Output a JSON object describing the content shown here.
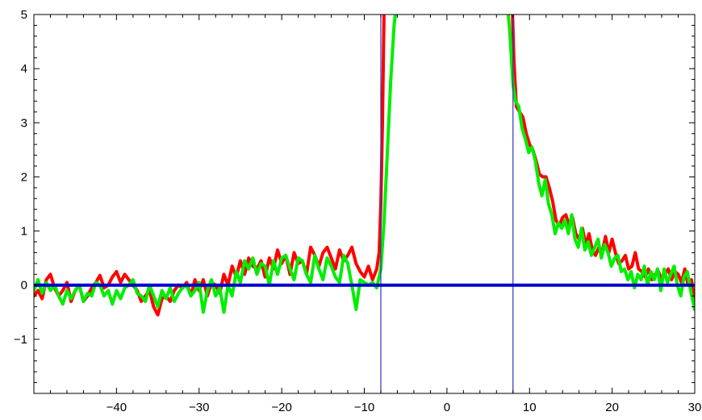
{
  "chart_data": {
    "type": "line",
    "xlim": [
      -50,
      30
    ],
    "ylim": [
      -2,
      5
    ],
    "x_ticks": [
      -40,
      -30,
      -20,
      -10,
      0,
      10,
      20,
      30
    ],
    "y_ticks": [
      -1,
      0,
      1,
      2,
      3,
      4,
      5
    ],
    "x_tick_labels": [
      "−40",
      "−30",
      "−20",
      "−10",
      "0",
      "10",
      "20",
      "30"
    ],
    "y_tick_labels": [
      "−1",
      "0",
      "1",
      "2",
      "3",
      "4",
      "5"
    ],
    "grid": false,
    "reference_lines": {
      "horizontal_y": 0,
      "vertical_x": [
        -8,
        8
      ],
      "horizontal_color": "#0000cc",
      "vertical_color": "#3333bb"
    },
    "series": [
      {
        "color": "#ff0000",
        "segments": [
          {
            "x": [
              -50,
              -49.5,
              -49,
              -48.5,
              -48,
              -47.5,
              -47,
              -46.5,
              -46,
              -45.5,
              -45,
              -44.5,
              -44,
              -43.5,
              -43,
              -42.5,
              -42,
              -41.5,
              -41,
              -40.5,
              -40,
              -39.5,
              -39,
              -38.5,
              -38,
              -37.5,
              -37,
              -36.5,
              -36,
              -35.5,
              -35,
              -34.5,
              -34,
              -33.5,
              -33,
              -32.5,
              -32,
              -31.5,
              -31,
              -30.5,
              -30,
              -29.5,
              -29,
              -28.5,
              -28,
              -27.5,
              -27,
              -26.5,
              -26,
              -25.5,
              -25,
              -24.5,
              -24,
              -23.5,
              -23,
              -22.5,
              -22,
              -21.5,
              -21,
              -20.5,
              -20,
              -19.5,
              -19,
              -18.5,
              -18,
              -17.5,
              -17,
              -16.5,
              -16,
              -15.5,
              -15,
              -14.5,
              -14,
              -13.5,
              -13,
              -12.5,
              -12,
              -11.5,
              -11,
              -10.5,
              -10,
              -9.5,
              -9,
              -8.5,
              -8.2,
              -8,
              -7.8,
              -7.6
            ],
            "y": [
              -0.2,
              -0.1,
              -0.25,
              0.1,
              0.2,
              -0.05,
              -0.2,
              -0.1,
              0.05,
              -0.3,
              -0.1,
              0.0,
              -0.3,
              -0.2,
              -0.05,
              0.05,
              0.18,
              -0.05,
              0.0,
              0.15,
              0.25,
              0.05,
              0.2,
              0.1,
              0.0,
              -0.1,
              -0.3,
              -0.2,
              -0.1,
              -0.4,
              -0.55,
              -0.25,
              -0.2,
              -0.3,
              -0.1,
              0.0,
              -0.05,
              0.05,
              -0.2,
              0.1,
              -0.1,
              0.1,
              -0.2,
              0.05,
              0.0,
              -0.15,
              0.2,
              0.0,
              0.35,
              0.15,
              0.45,
              0.2,
              0.5,
              0.35,
              0.3,
              0.45,
              0.15,
              0.5,
              0.3,
              0.65,
              0.4,
              0.55,
              0.2,
              0.6,
              0.4,
              0.45,
              0.2,
              0.7,
              0.55,
              0.35,
              0.6,
              0.7,
              0.5,
              0.3,
              0.65,
              0.45,
              0.55,
              0.7,
              0.4,
              0.25,
              0.15,
              0.35,
              0.1,
              0.3,
              0.6,
              1.5,
              3.0,
              5.2
            ]
          },
          {
            "x": [
              7.9,
              8.1,
              8.4,
              8.8,
              9.2,
              9.6,
              10,
              10.4,
              10.8,
              11.2,
              11.6,
              12,
              12.4,
              12.8,
              13.2,
              13.6,
              14,
              14.4,
              14.8,
              15.2,
              15.6,
              16,
              16.4,
              16.8,
              17.2,
              17.6,
              18,
              18.4,
              18.8,
              19.2,
              19.6,
              20,
              20.4,
              20.8,
              21.2,
              21.6,
              22,
              22.4,
              22.8,
              23.2,
              23.6,
              24,
              24.4,
              24.8,
              25.2,
              25.6,
              26,
              26.4,
              26.8,
              27.2,
              27.6,
              28,
              28.4,
              28.8,
              29.2,
              29.6,
              30
            ],
            "y": [
              5.2,
              4.2,
              3.3,
              3.2,
              3.1,
              2.8,
              2.6,
              2.5,
              2.3,
              2.05,
              2.0,
              2.0,
              1.8,
              1.55,
              1.2,
              1.1,
              1.25,
              1.3,
              1.1,
              1.25,
              0.95,
              0.85,
              1.05,
              0.75,
              0.95,
              0.65,
              0.55,
              0.7,
              0.6,
              0.9,
              0.6,
              0.85,
              0.6,
              0.4,
              0.45,
              0.55,
              0.3,
              0.35,
              0.6,
              0.3,
              0.25,
              0.15,
              0.3,
              0.1,
              0.2,
              0.25,
              0.1,
              0.2,
              0.3,
              0.1,
              0.25,
              0.2,
              0.05,
              0.3,
              0.0,
              0.1,
              -0.35
            ]
          }
        ]
      },
      {
        "color": "#00ee00",
        "segments": [
          {
            "x": [
              -50,
              -49.5,
              -49,
              -48.5,
              -48,
              -47.5,
              -47,
              -46.5,
              -46,
              -45.5,
              -45,
              -44.5,
              -44,
              -43.5,
              -43,
              -42.5,
              -42,
              -41.5,
              -41,
              -40.5,
              -40,
              -39.5,
              -39,
              -38.5,
              -38,
              -37.5,
              -37,
              -36.5,
              -36,
              -35.5,
              -35,
              -34.5,
              -34,
              -33.5,
              -33,
              -32.5,
              -32,
              -31.5,
              -31,
              -30.5,
              -30,
              -29.5,
              -29,
              -28.5,
              -28,
              -27.5,
              -27,
              -26.5,
              -26,
              -25.5,
              -25,
              -24.5,
              -24,
              -23.5,
              -23,
              -22.5,
              -22,
              -21.5,
              -21,
              -20.5,
              -20,
              -19.5,
              -19,
              -18.5,
              -18,
              -17.5,
              -17,
              -16.5,
              -16,
              -15.5,
              -15,
              -14.5,
              -14,
              -13.5,
              -13,
              -12.5,
              -12,
              -11.5,
              -11,
              -10.5,
              -10,
              -9.5,
              -9,
              -8.5,
              -8,
              -7.6,
              -7.2,
              -6.8,
              -6.4,
              -6.1
            ],
            "y": [
              -0.1,
              0.1,
              -0.15,
              0.05,
              -0.1,
              0.0,
              -0.2,
              -0.35,
              -0.1,
              -0.25,
              -0.1,
              0.0,
              -0.3,
              -0.15,
              -0.2,
              0.05,
              0.0,
              -0.2,
              -0.1,
              -0.35,
              -0.1,
              -0.25,
              -0.05,
              0.0,
              0.1,
              -0.15,
              -0.2,
              -0.3,
              0.0,
              -0.2,
              -0.4,
              -0.1,
              -0.25,
              -0.05,
              -0.3,
              -0.15,
              -0.05,
              0.0,
              -0.2,
              -0.1,
              0.05,
              -0.5,
              -0.1,
              0.1,
              -0.2,
              -0.05,
              -0.5,
              0.0,
              -0.2,
              0.25,
              0.05,
              0.45,
              0.3,
              0.5,
              0.2,
              0.4,
              0.35,
              0.0,
              0.45,
              0.2,
              0.5,
              0.55,
              0.3,
              0.1,
              0.5,
              0.45,
              0.2,
              0.05,
              0.55,
              0.3,
              0.1,
              0.5,
              0.35,
              0.15,
              0.05,
              0.55,
              0.4,
              0.0,
              -0.45,
              0.1,
              0.05,
              0.0,
              0.05,
              -0.05,
              0.3,
              1.2,
              2.5,
              3.8,
              4.8,
              5.2
            ]
          },
          {
            "x": [
              7.3,
              7.6,
              8.0,
              8.3,
              8.7,
              9.1,
              9.5,
              9.9,
              10.3,
              10.7,
              11.1,
              11.5,
              11.9,
              12.3,
              12.7,
              13.1,
              13.5,
              13.9,
              14.3,
              14.7,
              15.1,
              15.5,
              15.9,
              16.3,
              16.7,
              17.1,
              17.5,
              17.9,
              18.3,
              18.7,
              19.1,
              19.5,
              19.9,
              20.3,
              20.7,
              21.1,
              21.5,
              21.9,
              22.3,
              22.7,
              23.1,
              23.5,
              23.9,
              24.3,
              24.7,
              25.1,
              25.5,
              25.9,
              26.3,
              26.7,
              27.1,
              27.5,
              27.9,
              28.3,
              28.7,
              29.1,
              29.5,
              30
            ],
            "y": [
              5.2,
              4.7,
              3.7,
              3.4,
              3.3,
              2.9,
              2.7,
              2.45,
              2.55,
              2.3,
              1.9,
              1.65,
              1.95,
              1.5,
              1.3,
              0.95,
              1.15,
              1.05,
              1.2,
              0.95,
              1.3,
              0.85,
              0.7,
              1.05,
              0.65,
              0.8,
              0.55,
              0.7,
              0.85,
              0.5,
              0.75,
              0.6,
              0.35,
              0.5,
              0.55,
              0.25,
              0.3,
              0.1,
              0.25,
              -0.05,
              0.2,
              0.1,
              0.35,
              0.0,
              0.25,
              0.1,
              0.3,
              -0.1,
              0.3,
              0.05,
              0.2,
              0.35,
              0.0,
              -0.2,
              0.15,
              0.25,
              -0.1,
              -0.45
            ]
          }
        ]
      }
    ]
  }
}
